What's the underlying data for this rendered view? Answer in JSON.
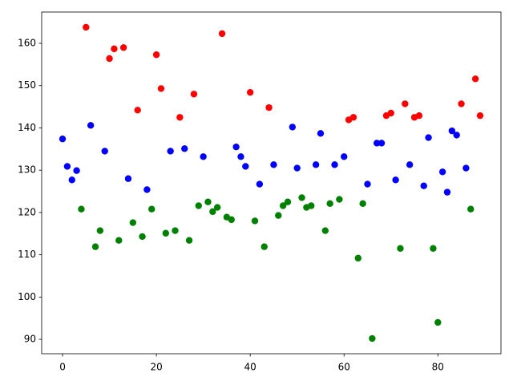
{
  "chart_data": {
    "type": "scatter",
    "x": [
      0,
      1,
      2,
      3,
      4,
      5,
      6,
      7,
      8,
      9,
      10,
      11,
      12,
      13,
      14,
      15,
      16,
      17,
      18,
      19,
      20,
      21,
      22,
      23,
      24,
      25,
      26,
      27,
      28,
      29,
      30,
      31,
      32,
      33,
      34,
      35,
      36,
      37,
      38,
      39,
      40,
      41,
      42,
      43,
      44,
      45,
      46,
      47,
      48,
      49,
      50,
      51,
      52,
      53,
      54,
      55,
      56,
      57,
      58,
      59,
      60,
      61,
      62,
      63,
      64,
      65,
      66,
      67,
      68,
      69,
      70,
      71,
      72,
      73,
      74,
      75,
      76,
      77,
      78,
      79,
      80,
      81,
      82,
      83,
      84,
      85,
      86,
      87,
      88,
      89
    ],
    "values": [
      137.4,
      130.9,
      127.7,
      129.9,
      120.8,
      163.8,
      140.6,
      111.9,
      115.7,
      134.5,
      156.4,
      158.7,
      113.4,
      159.0,
      128.0,
      117.6,
      144.2,
      114.3,
      125.4,
      120.8,
      157.3,
      149.3,
      115.1,
      134.5,
      115.7,
      142.5,
      135.1,
      113.4,
      148.0,
      121.6,
      133.2,
      122.5,
      120.2,
      121.2,
      162.3,
      118.9,
      118.3,
      135.5,
      133.2,
      130.9,
      148.4,
      118.0,
      126.7,
      111.9,
      144.8,
      131.3,
      119.3,
      121.6,
      122.5,
      140.2,
      130.5,
      123.5,
      121.2,
      121.6,
      131.3,
      138.7,
      115.7,
      122.1,
      131.3,
      123.1,
      133.2,
      141.9,
      142.5,
      109.2,
      122.1,
      126.7,
      90.2,
      136.4,
      136.4,
      142.9,
      143.5,
      127.7,
      111.5,
      145.7,
      131.3,
      142.5,
      142.9,
      126.3,
      137.7,
      111.5,
      94.0,
      129.6,
      124.8,
      139.3,
      138.3,
      145.7,
      130.5,
      120.8,
      151.6,
      142.9
    ],
    "point_colors": [
      "#0000ff",
      "#0000ff",
      "#0000ff",
      "#0000ff",
      "#008000",
      "#ff0000",
      "#0000ff",
      "#008000",
      "#008000",
      "#0000ff",
      "#ff0000",
      "#ff0000",
      "#008000",
      "#ff0000",
      "#0000ff",
      "#008000",
      "#ff0000",
      "#008000",
      "#0000ff",
      "#008000",
      "#ff0000",
      "#ff0000",
      "#008000",
      "#0000ff",
      "#008000",
      "#ff0000",
      "#0000ff",
      "#008000",
      "#ff0000",
      "#008000",
      "#0000ff",
      "#008000",
      "#008000",
      "#008000",
      "#ff0000",
      "#008000",
      "#008000",
      "#0000ff",
      "#0000ff",
      "#0000ff",
      "#ff0000",
      "#008000",
      "#0000ff",
      "#008000",
      "#ff0000",
      "#0000ff",
      "#008000",
      "#008000",
      "#008000",
      "#0000ff",
      "#0000ff",
      "#008000",
      "#008000",
      "#008000",
      "#0000ff",
      "#0000ff",
      "#008000",
      "#008000",
      "#0000ff",
      "#008000",
      "#0000ff",
      "#ff0000",
      "#ff0000",
      "#008000",
      "#008000",
      "#0000ff",
      "#008000",
      "#0000ff",
      "#0000ff",
      "#ff0000",
      "#ff0000",
      "#0000ff",
      "#008000",
      "#ff0000",
      "#0000ff",
      "#ff0000",
      "#ff0000",
      "#0000ff",
      "#0000ff",
      "#008000",
      "#008000",
      "#0000ff",
      "#0000ff",
      "#0000ff",
      "#0000ff",
      "#ff0000",
      "#0000ff",
      "#008000",
      "#ff0000",
      "#ff0000"
    ],
    "xlim": [
      -4.45,
      93.45
    ],
    "ylim": [
      86.6,
      167.4
    ],
    "xticks": [
      0,
      20,
      40,
      60,
      80
    ],
    "yticks": [
      90,
      100,
      110,
      120,
      130,
      140,
      150,
      160
    ],
    "grid": false
  }
}
